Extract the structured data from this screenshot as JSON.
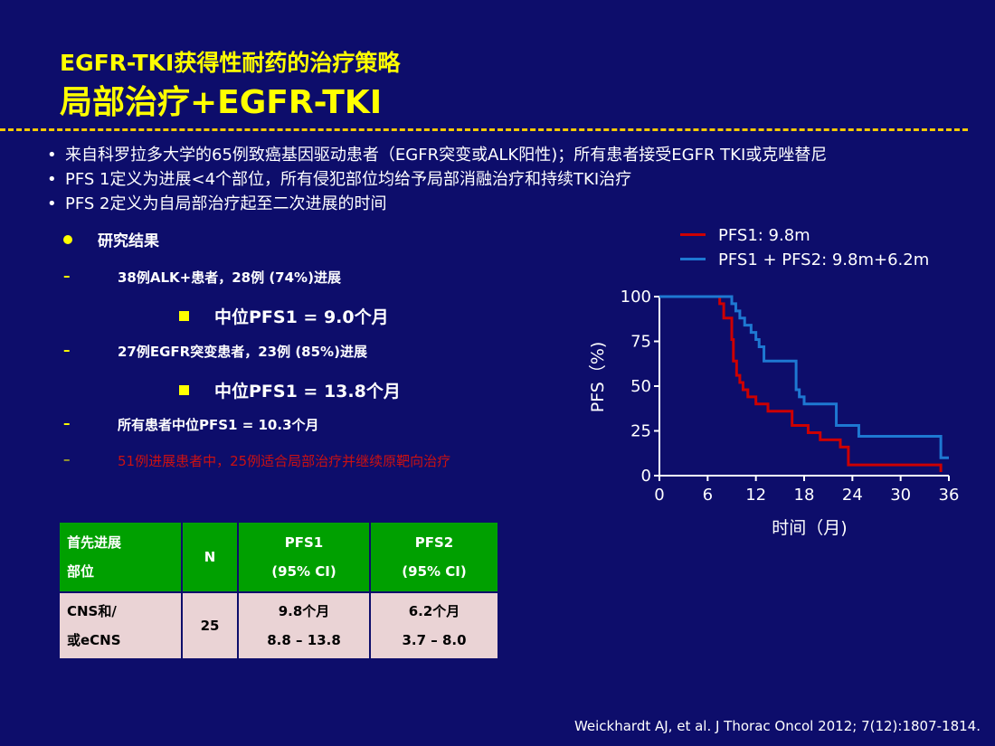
{
  "header": {
    "title_line1": "EGFR-TKI获得性耐药的治疗策略",
    "title_line2": "局部治疗+EGFR-TKI"
  },
  "bullets": [
    "来自科罗拉多大学的65例致癌基因驱动患者（EGFR突变或ALK阳性)；所有患者接受EGFR TKI或克唑替尼",
    "PFS 1定义为进展<4个部位，所有侵犯部位均给予局部消融治疗和持续TKI治疗",
    "PFS 2定义为自局部治疗起至二次进展的时间"
  ],
  "results": {
    "heading": "研究结果",
    "item1": "38例ALK+患者，28例 (74%)进展",
    "sub1": "中位PFS1 = 9.0个月",
    "item2": "27例EGFR突变患者，23例 (85%)进展",
    "sub2": "中位PFS1 = 13.8个月",
    "item3": "所有患者中位PFS1 = 10.3个月",
    "item4": "51例进展患者中，25例适合局部治疗并继续原靶向治疗",
    "dash": "–"
  },
  "table": {
    "headers": {
      "site_line1": "首先进展",
      "site_line2": "部位",
      "n": "N",
      "pfs1_line1": "PFS1",
      "pfs1_line2": "(95% CI)",
      "pfs2_line1": "PFS2",
      "pfs2_line2": "(95% CI)"
    },
    "row": {
      "site_line1": "CNS和/",
      "site_line2": "或eCNS",
      "n": "25",
      "pfs1_line1": "9.8个月",
      "pfs1_line2": "8.8 – 13.8",
      "pfs2_line1": "6.2个月",
      "pfs2_line2": "3.7 – 8.0"
    }
  },
  "chart_data": {
    "type": "line",
    "step": true,
    "xlabel": "时间（月)",
    "ylabel": "PFS（%)",
    "xlim": [
      0,
      36
    ],
    "ylim": [
      0,
      100
    ],
    "xticks": [
      0,
      6,
      12,
      18,
      24,
      30,
      36
    ],
    "yticks": [
      0,
      25,
      50,
      75,
      100
    ],
    "grid": false,
    "legend_position": "top-right",
    "series": [
      {
        "name": "PFS1: 9.8m",
        "color": "#cc0000",
        "x": [
          0,
          6.5,
          7.5,
          8,
          9,
          9.2,
          9.6,
          10,
          10.4,
          11,
          12,
          13.5,
          16.5,
          18.5,
          20,
          22.5,
          23.5,
          34.8,
          35
        ],
        "y": [
          100,
          100,
          96,
          88,
          76,
          64,
          56,
          52,
          48,
          44,
          40,
          36,
          28,
          24,
          20,
          16,
          6,
          6,
          2
        ]
      },
      {
        "name": "PFS1 + PFS2: 9.8m+6.2m",
        "color": "#1e78d2",
        "x": [
          0,
          7.5,
          9,
          9.5,
          10,
          10.6,
          11.4,
          12,
          12.4,
          13,
          16.5,
          17,
          17.4,
          18,
          21.5,
          22,
          24.8,
          35,
          36
        ],
        "y": [
          100,
          100,
          96,
          92,
          88,
          84,
          80,
          76,
          72,
          64,
          64,
          48,
          44,
          40,
          40,
          28,
          22,
          10,
          10
        ]
      }
    ]
  },
  "citation": "Weickhardt AJ, et al. J Thorac Oncol 2012; 7(12):1807-1814."
}
